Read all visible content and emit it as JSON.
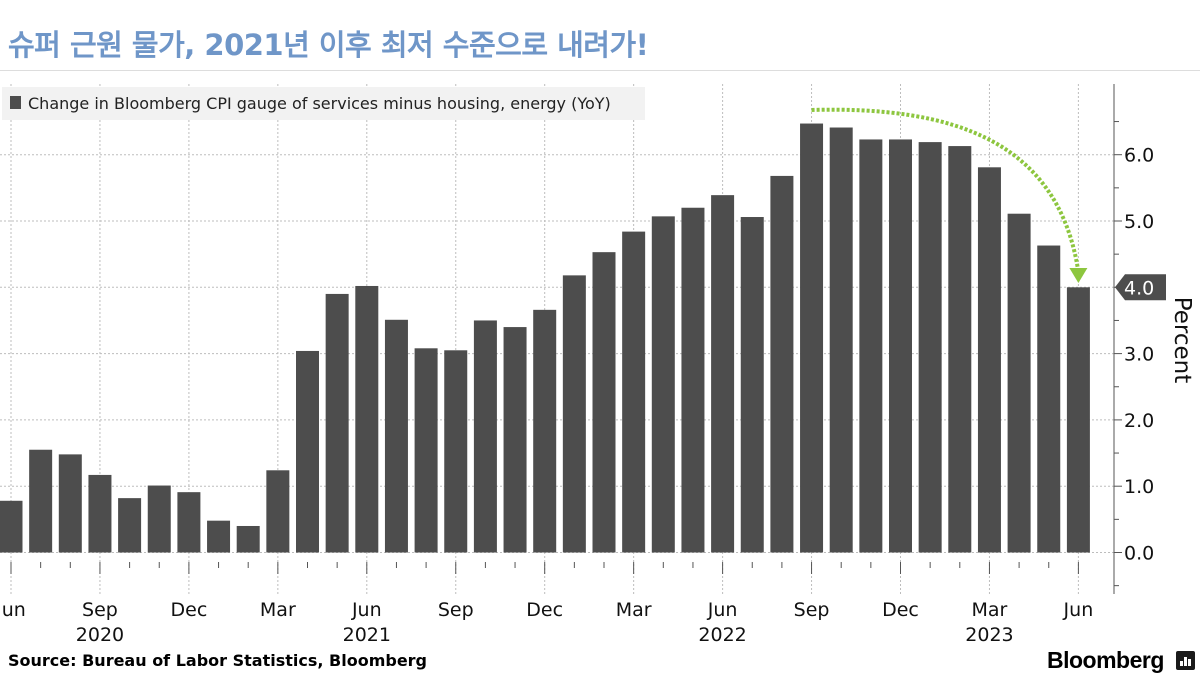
{
  "title": "슈퍼 근원 물가, 2021년 이후 최저 수준으로 내려가!",
  "source": "Source:  Bureau of Labor Statistics, Bloomberg",
  "brand": "Bloomberg",
  "chart_data": {
    "type": "bar",
    "series": [
      {
        "name": "Change in Bloomberg CPI gauge of services minus housing, energy (YoY)",
        "color": "#4d4d4d",
        "values": [
          0.78,
          1.55,
          1.48,
          1.17,
          0.82,
          1.01,
          0.91,
          0.48,
          0.4,
          1.24,
          3.04,
          3.9,
          4.02,
          3.51,
          3.08,
          3.05,
          3.5,
          3.4,
          3.66,
          4.18,
          4.53,
          4.84,
          5.07,
          5.2,
          5.39,
          5.06,
          5.68,
          6.47,
          6.41,
          6.23,
          6.23,
          6.19,
          6.13,
          5.81,
          5.11,
          4.63,
          4.0
        ]
      }
    ],
    "categories": [
      "2020-06",
      "2020-07",
      "2020-08",
      "2020-09",
      "2020-10",
      "2020-11",
      "2020-12",
      "2021-01",
      "2021-02",
      "2021-03",
      "2021-04",
      "2021-05",
      "2021-06",
      "2021-07",
      "2021-08",
      "2021-09",
      "2021-10",
      "2021-11",
      "2021-12",
      "2022-01",
      "2022-02",
      "2022-03",
      "2022-04",
      "2022-05",
      "2022-06",
      "2022-07",
      "2022-08",
      "2022-09",
      "2022-10",
      "2022-11",
      "2022-12",
      "2023-01",
      "2023-02",
      "2023-03",
      "2023-04",
      "2023-05",
      "2023-06"
    ],
    "x_tick_labels": [
      {
        "index": 0,
        "label": "Jun"
      },
      {
        "index": 3,
        "label": "Sep"
      },
      {
        "index": 6,
        "label": "Dec"
      },
      {
        "index": 9,
        "label": "Mar"
      },
      {
        "index": 12,
        "label": "Jun"
      },
      {
        "index": 15,
        "label": "Sep"
      },
      {
        "index": 18,
        "label": "Dec"
      },
      {
        "index": 21,
        "label": "Mar"
      },
      {
        "index": 24,
        "label": "Jun"
      },
      {
        "index": 27,
        "label": "Sep"
      },
      {
        "index": 30,
        "label": "Dec"
      },
      {
        "index": 33,
        "label": "Mar"
      },
      {
        "index": 36,
        "label": "Jun"
      }
    ],
    "x_year_labels": [
      {
        "index": 3,
        "label": "2020"
      },
      {
        "index": 12,
        "label": "2021"
      },
      {
        "index": 24,
        "label": "2022"
      },
      {
        "index": 33,
        "label": "2023"
      }
    ],
    "ylabel": "Percent",
    "y_ticks": [
      0.0,
      1.0,
      2.0,
      3.0,
      4.0,
      5.0,
      6.0
    ],
    "y_tick_labels": [
      "0.0",
      "1.0",
      "2.0",
      "3.0",
      "4.0",
      "5.0",
      "6.0"
    ],
    "ylim": [
      -0.6,
      7.0
    ],
    "y_axis_side": "right",
    "last_value_label": "4.0",
    "legend_position": "top-left",
    "grid": true,
    "annotation": {
      "type": "curved-arrow",
      "color": "#8dc63f",
      "from_index": 27,
      "to_index": 36
    }
  }
}
